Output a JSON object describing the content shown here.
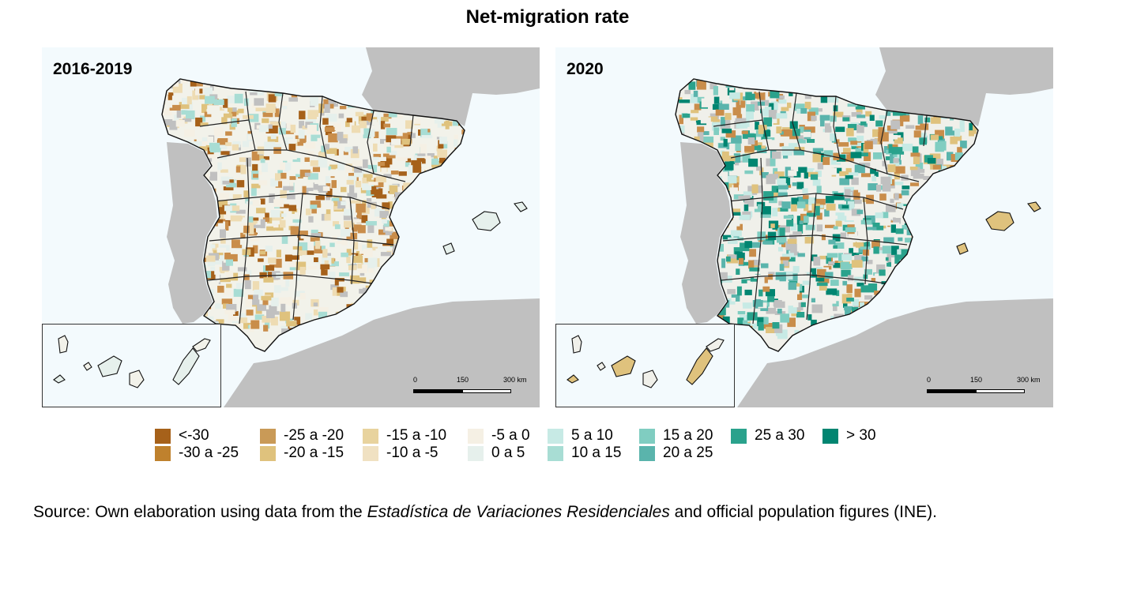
{
  "title": "Net-migration rate",
  "panels": [
    {
      "label": "2016-2019",
      "palette": [
        "#a6611a",
        "#c98d4a",
        "#dfc27d",
        "#eedcb3",
        "#f5f0e4",
        "#f2f2ea",
        "#e6f0ec",
        "#a8ddd4"
      ],
      "neighbor_color": "#c0c0c0",
      "sea_color": "#f3fafd"
    },
    {
      "label": "2020",
      "palette": [
        "#018571",
        "#2aa28c",
        "#5ab4ac",
        "#80cdc1",
        "#c7eae5",
        "#f0f0ea",
        "#dfc27d",
        "#c98d4a"
      ],
      "neighbor_color": "#c0c0c0",
      "sea_color": "#f3fafd"
    }
  ],
  "scale": {
    "ticks": [
      "0",
      "150",
      "300 km"
    ]
  },
  "legend": [
    {
      "label": "<-30",
      "color": "#a6611a"
    },
    {
      "label": "-30 a -25",
      "color": "#bf812d"
    },
    {
      "label": "-25 a -20",
      "color": "#c99a57"
    },
    {
      "label": "-20 a -15",
      "color": "#dfc27d"
    },
    {
      "label": "-15 a -10",
      "color": "#e8d39e"
    },
    {
      "label": "-10 a -5",
      "color": "#f0e1c2"
    },
    {
      "label": "-5 a 0",
      "color": "#f5f0e4"
    },
    {
      "label": "0 a 5",
      "color": "#e6f0ec"
    },
    {
      "label": "5 a 10",
      "color": "#c7eae5"
    },
    {
      "label": "10 a 15",
      "color": "#a8ddd4"
    },
    {
      "label": "15 a 20",
      "color": "#80cdc1"
    },
    {
      "label": "20 a 25",
      "color": "#5ab4ac"
    },
    {
      "label": "25 a 30",
      "color": "#2aa28c"
    },
    {
      "label": "> 30",
      "color": "#018571"
    }
  ],
  "source": {
    "prefix": "Source: Own elaboration using data from the ",
    "emphasis": "Estadística de Variaciones Residenciales",
    "suffix": " and official population figures (INE)."
  }
}
